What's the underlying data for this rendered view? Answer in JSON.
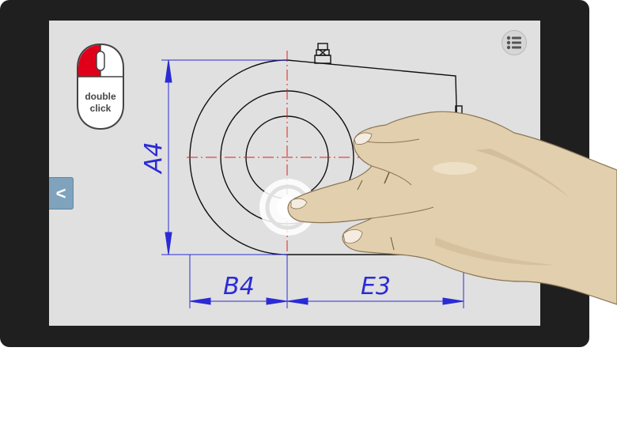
{
  "tooltip": {
    "gesture_line1": "double",
    "gesture_line2": "click",
    "mouse_icon": "mouse-left-button-icon"
  },
  "controls": {
    "menu_icon": "list-menu-icon",
    "back_label": "<"
  },
  "drawing": {
    "dimension_a": "A4",
    "dimension_b": "B4",
    "dimension_e": "E3"
  },
  "colors": {
    "tablet_frame": "#1f1f1f",
    "screen_background": "#e0e0e0",
    "dimension_lines": "#2b2bd6",
    "center_lines": "#e02020",
    "mouse_button_active": "#e0001a",
    "back_tab": "#7fa3bd",
    "hand_skin": "#e2cfae"
  }
}
